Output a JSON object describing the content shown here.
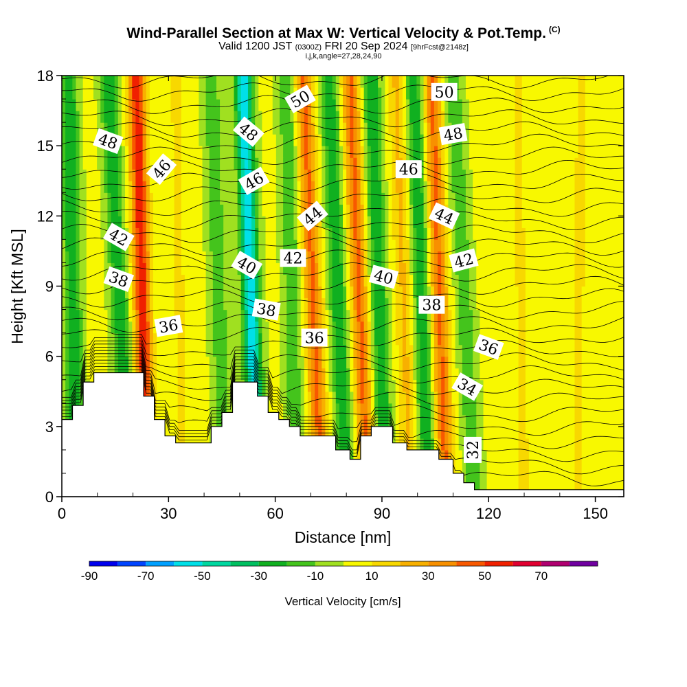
{
  "header": {
    "title": "Wind-Parallel Section at Max W: Vertical Velocity & Pot.Temp.",
    "copyright_mark": "(C)",
    "valid_prefix": "Valid 1200 JST",
    "valid_utc": "(0300Z)",
    "valid_date": "FRI 20 Sep 2024",
    "forecast_tag": "[9hrFcst@2148z]",
    "indices": "i,j,k,angle=27,28,24,90"
  },
  "chart_data": {
    "type": "heatmap",
    "xlabel": "Distance [nm]",
    "ylabel": "Height [Kft MSL]",
    "xlim": [
      0,
      158
    ],
    "ylim": [
      0,
      18
    ],
    "x_ticks": [
      0,
      30,
      60,
      90,
      120,
      150
    ],
    "y_ticks": [
      0,
      3,
      6,
      9,
      12,
      15,
      18
    ],
    "colorbar": {
      "title": "Vertical Velocity [cm/s]",
      "levels": [
        -90,
        -80,
        -70,
        -60,
        -50,
        -40,
        -30,
        -20,
        -10,
        0,
        10,
        20,
        30,
        40,
        50,
        60,
        70,
        80
      ],
      "tick_labels": [
        "-90",
        "-70",
        "-50",
        "-30",
        "-10",
        "10",
        "30",
        "50",
        "70"
      ],
      "tick_values": [
        -90,
        -70,
        -50,
        -30,
        -10,
        10,
        30,
        50,
        70
      ],
      "colors": [
        "#0000ee",
        "#0044ff",
        "#00a0ff",
        "#00e0e8",
        "#00d8a0",
        "#00c060",
        "#10b020",
        "#44c41c",
        "#a0e020",
        "#f8f800",
        "#f8d800",
        "#f8b000",
        "#f89000",
        "#f85800",
        "#f02000",
        "#e00030",
        "#b00070",
        "#7000a0"
      ]
    },
    "velocity_bands": [
      {
        "x_bottom": 4,
        "x_top": 2,
        "w": -30
      },
      {
        "x_bottom": 19,
        "x_top": 13,
        "w": -30
      },
      {
        "x_bottom": 24,
        "x_top": 21,
        "w": 55
      },
      {
        "x_bottom": 34,
        "x_top": 32,
        "w": 10
      },
      {
        "x_bottom": 46,
        "x_top": 42,
        "w": -20
      },
      {
        "x_bottom": 55,
        "x_top": 51,
        "w": -60
      },
      {
        "x_bottom": 66,
        "x_top": 63,
        "w": -20
      },
      {
        "x_bottom": 73,
        "x_top": 68,
        "w": 40
      },
      {
        "x_bottom": 80,
        "x_top": 75,
        "w": -30
      },
      {
        "x_bottom": 86,
        "x_top": 81,
        "w": 40
      },
      {
        "x_bottom": 91,
        "x_top": 87,
        "w": -30
      },
      {
        "x_bottom": 98,
        "x_top": 94,
        "w": 20
      },
      {
        "x_bottom": 103,
        "x_top": 99,
        "w": -30
      },
      {
        "x_bottom": 108,
        "x_top": 104,
        "w": 40
      },
      {
        "x_bottom": 116,
        "x_top": 110,
        "w": -20
      },
      {
        "x_bottom": 130,
        "x_top": 128,
        "w": 10
      },
      {
        "x_bottom": 145,
        "x_top": 146,
        "w": 10
      }
    ],
    "terrain": [
      [
        0,
        3.3
      ],
      [
        3,
        3.3
      ],
      [
        3,
        3.9
      ],
      [
        6,
        3.9
      ],
      [
        6,
        4.9
      ],
      [
        9,
        4.9
      ],
      [
        9,
        5.3
      ],
      [
        23,
        5.3
      ],
      [
        23,
        4.3
      ],
      [
        26,
        4.3
      ],
      [
        26,
        3.3
      ],
      [
        29,
        3.3
      ],
      [
        29,
        2.6
      ],
      [
        32,
        2.6
      ],
      [
        32,
        2.3
      ],
      [
        42,
        2.3
      ],
      [
        42,
        3.0
      ],
      [
        45,
        3.0
      ],
      [
        45,
        3.6
      ],
      [
        48,
        3.6
      ],
      [
        48,
        4.9
      ],
      [
        55,
        4.9
      ],
      [
        55,
        4.3
      ],
      [
        58,
        4.3
      ],
      [
        58,
        3.6
      ],
      [
        61,
        3.6
      ],
      [
        61,
        3.3
      ],
      [
        64,
        3.3
      ],
      [
        64,
        3.0
      ],
      [
        67,
        3.0
      ],
      [
        67,
        2.6
      ],
      [
        77,
        2.6
      ],
      [
        77,
        2.0
      ],
      [
        81,
        2.0
      ],
      [
        81,
        1.6
      ],
      [
        84,
        1.6
      ],
      [
        84,
        2.6
      ],
      [
        87,
        2.6
      ],
      [
        87,
        3.0
      ],
      [
        93,
        3.0
      ],
      [
        93,
        2.3
      ],
      [
        97,
        2.3
      ],
      [
        97,
        2.0
      ],
      [
        106,
        2.0
      ],
      [
        106,
        1.6
      ],
      [
        110,
        1.6
      ],
      [
        110,
        1.0
      ],
      [
        113,
        1.0
      ],
      [
        113,
        0.6
      ],
      [
        116,
        0.6
      ],
      [
        116,
        0.3
      ],
      [
        158,
        0.3
      ]
    ],
    "theta_contours": [
      {
        "label": "32",
        "base": 0.3,
        "slope": 0.0,
        "label_x": 115.5,
        "label_y": 2.0,
        "label_angle": -90
      },
      {
        "label": "34",
        "base": 2.5,
        "slope": 0.05,
        "label_x": 114,
        "label_y": 4.7,
        "label_angle": 30
      },
      {
        "label": "36",
        "base": 6.6,
        "slope": 0.0,
        "label_x": 30,
        "label_y": 7.3,
        "label_angle": -10
      },
      {
        "label": "36",
        "base": 6.6,
        "slope": 0.0,
        "label_x": 71,
        "label_y": 6.8,
        "label_angle": 0
      },
      {
        "label": "36",
        "base": 6.6,
        "slope": 0.0,
        "label_x": 120,
        "label_y": 6.4,
        "label_angle": 20
      },
      {
        "label": "38",
        "base": 8.2,
        "slope": 0.0,
        "label_x": 16,
        "label_y": 9.3,
        "label_angle": 20
      },
      {
        "label": "38",
        "base": 8.2,
        "slope": 0.0,
        "label_x": 57.5,
        "label_y": 8.0,
        "label_angle": 10
      },
      {
        "label": "38",
        "base": 8.2,
        "slope": 0.0,
        "label_x": 104,
        "label_y": 8.2,
        "label_angle": 0
      },
      {
        "label": "40",
        "base": 9.6,
        "slope": 0.0,
        "label_x": 52,
        "label_y": 9.9,
        "label_angle": 30
      },
      {
        "label": "40",
        "base": 9.6,
        "slope": 0.0,
        "label_x": 90.5,
        "label_y": 9.4,
        "label_angle": 15
      },
      {
        "label": "42",
        "base": 10.5,
        "slope": 0.0,
        "label_x": 16,
        "label_y": 11.1,
        "label_angle": 30
      },
      {
        "label": "42",
        "base": 10.5,
        "slope": 0.0,
        "label_x": 65,
        "label_y": 10.2,
        "label_angle": 0
      },
      {
        "label": "42",
        "base": 10.5,
        "slope": 0.0,
        "label_x": 113,
        "label_y": 10.1,
        "label_angle": -15
      },
      {
        "label": "44",
        "base": 12.2,
        "slope": 0.0,
        "label_x": 70.5,
        "label_y": 12.0,
        "label_angle": -40
      },
      {
        "label": "44",
        "base": 12.2,
        "slope": 0.0,
        "label_x": 107.5,
        "label_y": 12.0,
        "label_angle": 25
      },
      {
        "label": "46",
        "base": 13.6,
        "slope": 0.0,
        "label_x": 28,
        "label_y": 14.0,
        "label_angle": -50
      },
      {
        "label": "46",
        "base": 13.6,
        "slope": 0.0,
        "label_x": 54,
        "label_y": 13.5,
        "label_angle": -30
      },
      {
        "label": "46",
        "base": 13.6,
        "slope": 0.0,
        "label_x": 97.5,
        "label_y": 14.0,
        "label_angle": 0
      },
      {
        "label": "48",
        "base": 15.2,
        "slope": 0.0,
        "label_x": 13,
        "label_y": 15.2,
        "label_angle": 20
      },
      {
        "label": "48",
        "base": 15.2,
        "slope": 0.0,
        "label_x": 52.5,
        "label_y": 15.6,
        "label_angle": 40
      },
      {
        "label": "48",
        "base": 15.2,
        "slope": 0.0,
        "label_x": 110,
        "label_y": 15.5,
        "label_angle": -10
      },
      {
        "label": "50",
        "base": 16.9,
        "slope": 0.0,
        "label_x": 67,
        "label_y": 17.0,
        "label_angle": -30
      },
      {
        "label": "50",
        "base": 16.9,
        "slope": 0.0,
        "label_x": 107.5,
        "label_y": 17.3,
        "label_angle": 0
      }
    ]
  }
}
